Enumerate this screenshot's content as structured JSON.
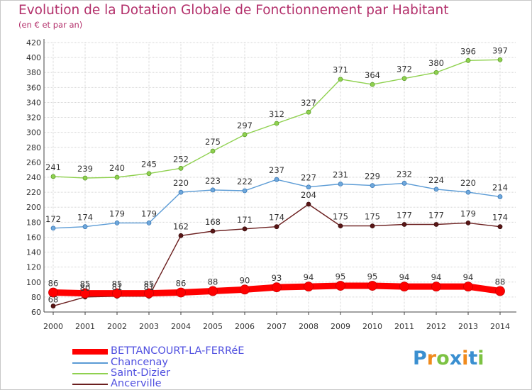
{
  "chart_data": {
    "type": "line",
    "title": "Evolution de la Dotation Globale de Fonctionnement par Habitant",
    "subtitle": "(en € et par an)",
    "x": [
      "2000",
      "2001",
      "2002",
      "2003",
      "2004",
      "2005",
      "2006",
      "2007",
      "2008",
      "2009",
      "2010",
      "2011",
      "2012",
      "2013",
      "2014"
    ],
    "ylim": [
      60,
      420
    ],
    "yticks": [
      60,
      80,
      100,
      120,
      140,
      160,
      180,
      200,
      220,
      240,
      260,
      280,
      300,
      320,
      340,
      360,
      380,
      400,
      420
    ],
    "series": [
      {
        "name": "BETTANCOURT-LA-FERRéE",
        "color": "#ff0000",
        "values": [
          86,
          85,
          85,
          85,
          86,
          88,
          90,
          93,
          94,
          95,
          95,
          94,
          94,
          94,
          88
        ]
      },
      {
        "name": "Chancenay",
        "color": "#5b9bd5",
        "values": [
          172,
          174,
          179,
          179,
          220,
          223,
          222,
          237,
          227,
          231,
          229,
          232,
          224,
          220,
          214
        ]
      },
      {
        "name": "Saint-Dizier",
        "color": "#8fd14f",
        "values": [
          241,
          239,
          240,
          245,
          252,
          275,
          297,
          312,
          327,
          371,
          364,
          372,
          380,
          396,
          397
        ]
      },
      {
        "name": "Ancerville",
        "color": "#6b1f1f",
        "values": [
          68,
          80,
          81,
          81,
          162,
          168,
          171,
          174,
          204,
          175,
          175,
          177,
          177,
          179,
          174
        ]
      }
    ]
  },
  "logo": {
    "letters": [
      "P",
      "r",
      "o",
      "x",
      "i",
      "t",
      "i"
    ],
    "colors": [
      "#3a8fd0",
      "#f08a1c",
      "#7cc242",
      "#3a8fd0",
      "#f08a1c",
      "#3a8fd0",
      "#7cc242"
    ]
  }
}
